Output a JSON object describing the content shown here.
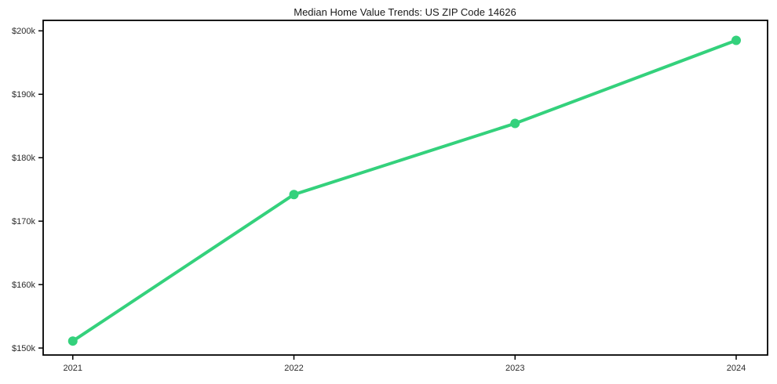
{
  "chart_data": {
    "type": "line",
    "title": "Median Home Value Trends: US ZIP Code 14626",
    "x": [
      2021,
      2022,
      2023,
      2024
    ],
    "x_tick_labels": [
      "2021",
      "2022",
      "2023",
      "2024"
    ],
    "series": [
      {
        "name": "Median Home Value",
        "values": [
          151100,
          174200,
          185400,
          198500
        ]
      }
    ],
    "y_ticks": [
      {
        "value": 150000,
        "label": "$150k"
      },
      {
        "value": 160000,
        "label": "$160k"
      },
      {
        "value": 170000,
        "label": "$170k"
      },
      {
        "value": 180000,
        "label": "$180k"
      },
      {
        "value": 190000,
        "label": "$190k"
      },
      {
        "value": 200000,
        "label": "$200k"
      }
    ],
    "ylim": [
      148900,
      201650
    ],
    "xlim": [
      2020.866,
      2024.142
    ],
    "grid": false,
    "legend": "none",
    "line_color": "#34d17c",
    "marker": "circle",
    "spine_color": "#000000",
    "tick_color": "#000000",
    "background_color": "#ffffff"
  }
}
